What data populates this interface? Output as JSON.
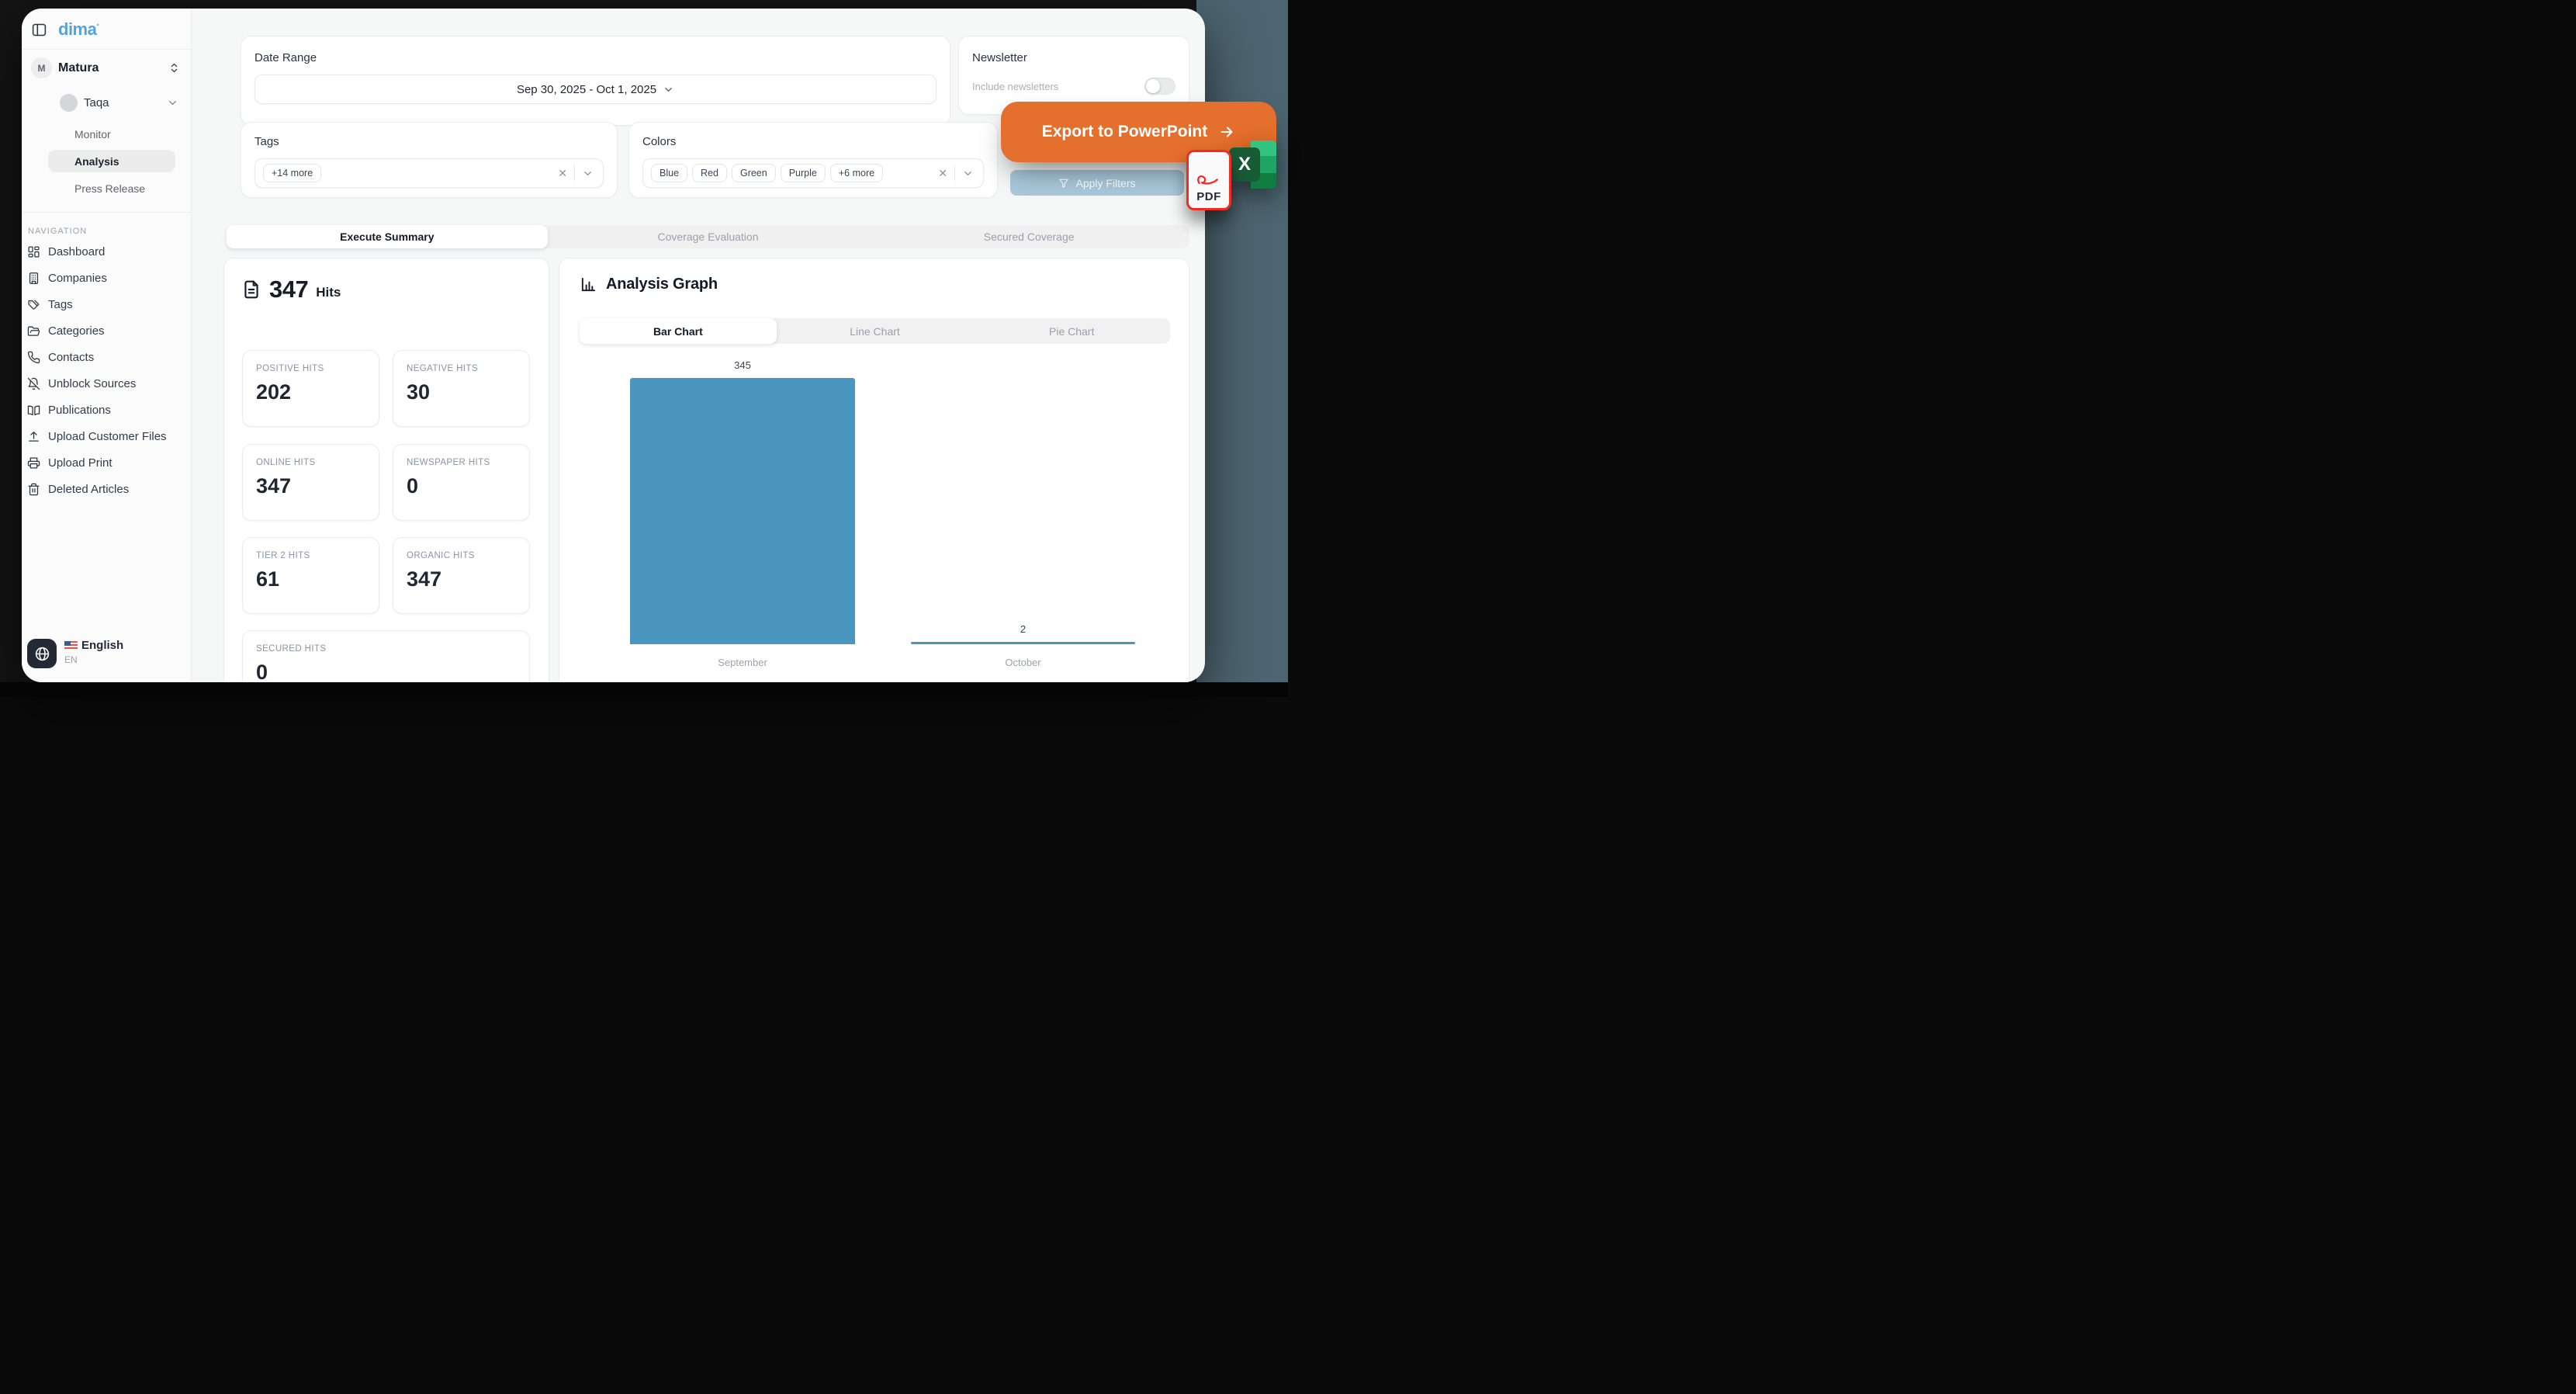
{
  "app": {
    "logo_text": "dima",
    "logo_mark": "°"
  },
  "sidebar": {
    "workspace_initial": "M",
    "workspace_name": "Matura",
    "project_name": "Taqa",
    "project_items": [
      {
        "label": "Monitor",
        "active": false
      },
      {
        "label": "Analysis",
        "active": true
      },
      {
        "label": "Press Release",
        "active": false
      }
    ],
    "nav_heading": "NAVIGATION",
    "nav_items": [
      {
        "icon": "layout-dashboard",
        "label": "Dashboard"
      },
      {
        "icon": "building",
        "label": "Companies"
      },
      {
        "icon": "tags",
        "label": "Tags"
      },
      {
        "icon": "folder-open",
        "label": "Categories"
      },
      {
        "icon": "phone",
        "label": "Contacts"
      },
      {
        "icon": "bell-off",
        "label": "Unblock Sources"
      },
      {
        "icon": "book-open",
        "label": "Publications"
      },
      {
        "icon": "upload",
        "label": "Upload Customer Files"
      },
      {
        "icon": "printer",
        "label": "Upload Print"
      },
      {
        "icon": "trash",
        "label": "Deleted Articles"
      }
    ],
    "language": {
      "label": "English",
      "code": "EN"
    }
  },
  "filters": {
    "date_range": {
      "label": "Date Range",
      "value": "Sep 30, 2025 - Oct 1, 2025"
    },
    "newsletter": {
      "label": "Newsletter",
      "description": "Include newsletters",
      "enabled": false
    },
    "tags": {
      "label": "Tags",
      "chips": [
        "+14 more"
      ]
    },
    "colors": {
      "label": "Colors",
      "chips": [
        "Blue",
        "Red",
        "Green",
        "Purple",
        "+6 more"
      ]
    },
    "apply_label": "Apply Filters"
  },
  "export": {
    "powerpoint_label": "Export to PowerPoint",
    "pdf_label": "PDF",
    "excel_letter": "X"
  },
  "tabs": [
    {
      "label": "Execute Summary",
      "active": true
    },
    {
      "label": "Coverage Evaluation",
      "active": false
    },
    {
      "label": "Secured Coverage",
      "active": false
    }
  ],
  "hits": {
    "total": "347",
    "unit": "Hits",
    "cards": [
      {
        "label": "POSITIVE HITS",
        "value": "202"
      },
      {
        "label": "NEGATIVE HITS",
        "value": "30"
      },
      {
        "label": "ONLINE HITS",
        "value": "347"
      },
      {
        "label": "NEWSPAPER HITS",
        "value": "0"
      },
      {
        "label": "TIER 2 HITS",
        "value": "61"
      },
      {
        "label": "ORGANIC HITS",
        "value": "347"
      },
      {
        "label": "SECURED HITS",
        "value": "0"
      }
    ]
  },
  "graph": {
    "title": "Analysis Graph",
    "chart_tabs": [
      {
        "label": "Bar Chart",
        "active": true
      },
      {
        "label": "Line Chart",
        "active": false
      },
      {
        "label": "Pie Chart",
        "active": false
      }
    ]
  },
  "chart_data": {
    "type": "bar",
    "categories": [
      "September",
      "October"
    ],
    "values": [
      345,
      2
    ],
    "title": "Analysis Graph",
    "xlabel": "",
    "ylabel": "",
    "ylim": [
      0,
      345
    ],
    "bar_color": "#4b96be",
    "grid": false,
    "legend": false,
    "data_labels": true
  },
  "theme": {
    "accent_orange": "#e56f2c",
    "apply_blue": "#a9c9db",
    "bar_blue": "#4b96be",
    "logo_blue": "#54a4d8",
    "teal_backdrop": "#4d6570",
    "pdf_red": "#ee2d24",
    "excel_green_dark": "#185c37"
  }
}
